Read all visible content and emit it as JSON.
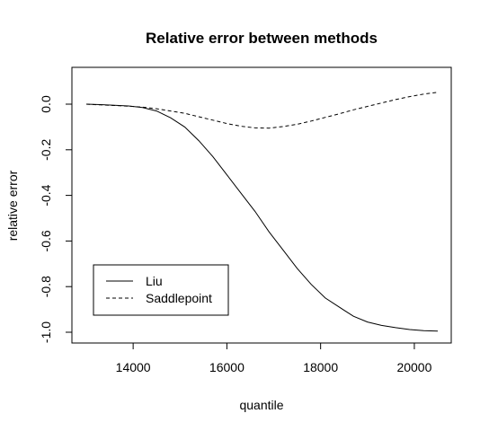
{
  "chart_data": {
    "type": "line",
    "title": "Relative error between methods",
    "xlabel": "quantile",
    "ylabel": "relative error",
    "xlim": [
      13000,
      20500
    ],
    "ylim": [
      -1.0,
      0.05
    ],
    "x_ticks": [
      14000,
      16000,
      18000,
      20000
    ],
    "x_tick_labels": [
      "14000",
      "16000",
      "18000",
      "20000"
    ],
    "y_ticks": [
      0.0,
      -0.2,
      -0.4,
      -0.6,
      -0.8,
      -1.0
    ],
    "y_tick_labels": [
      "0.0",
      "-0.2",
      "-0.4",
      "-0.6",
      "-0.8",
      "-1.0"
    ],
    "grid": false,
    "legend_position": "bottom-left",
    "series": [
      {
        "name": "Liu",
        "line_style": "solid",
        "color": "#000000",
        "x": [
          13000,
          13300,
          13600,
          13900,
          14200,
          14500,
          14800,
          15100,
          15400,
          15700,
          16000,
          16300,
          16600,
          16900,
          17200,
          17500,
          17800,
          18100,
          18400,
          18700,
          19000,
          19300,
          19600,
          19900,
          20200,
          20500
        ],
        "y": [
          0.0,
          -0.002,
          -0.005,
          -0.008,
          -0.015,
          -0.03,
          -0.06,
          -0.1,
          -0.16,
          -0.23,
          -0.31,
          -0.39,
          -0.47,
          -0.56,
          -0.64,
          -0.72,
          -0.79,
          -0.85,
          -0.89,
          -0.93,
          -0.955,
          -0.97,
          -0.98,
          -0.988,
          -0.993,
          -0.995
        ]
      },
      {
        "name": "Saddlepoint",
        "line_style": "dashed",
        "color": "#000000",
        "x": [
          13000,
          13300,
          13600,
          13900,
          14200,
          14500,
          14800,
          15100,
          15400,
          15700,
          16000,
          16300,
          16600,
          16900,
          17200,
          17500,
          17800,
          18100,
          18400,
          18700,
          19000,
          19300,
          19600,
          19900,
          20200,
          20500
        ],
        "y": [
          0.0,
          -0.003,
          -0.006,
          -0.009,
          -0.013,
          -0.02,
          -0.03,
          -0.04,
          -0.055,
          -0.07,
          -0.085,
          -0.097,
          -0.104,
          -0.105,
          -0.098,
          -0.088,
          -0.074,
          -0.058,
          -0.042,
          -0.025,
          -0.01,
          0.005,
          0.02,
          0.033,
          0.044,
          0.052
        ]
      }
    ]
  }
}
